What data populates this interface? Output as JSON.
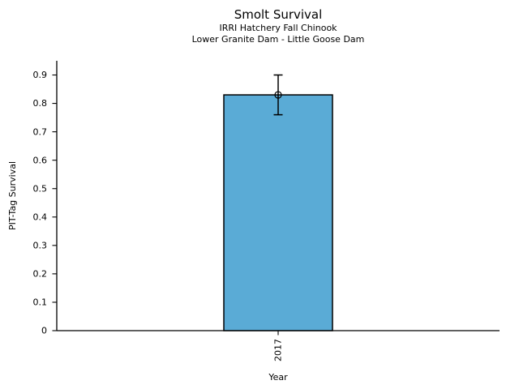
{
  "chart_data": {
    "type": "bar",
    "title": "Smolt Survival",
    "subtitle_lines": [
      "IRRI Hatchery Fall Chinook",
      "Lower Granite Dam - Little Goose Dam"
    ],
    "xlabel": "Year",
    "ylabel": "PIT-Tag Survival",
    "categories": [
      "2017"
    ],
    "values": [
      0.83
    ],
    "error_low": [
      0.76
    ],
    "error_high": [
      0.9
    ],
    "marker": "open-circle",
    "ylim": [
      0,
      0.95
    ],
    "yticks": [
      0,
      0.1,
      0.2,
      0.3,
      0.4,
      0.5,
      0.6,
      0.7,
      0.8,
      0.9
    ],
    "ytick_labels": [
      "0",
      "0.1",
      "0.2",
      "0.3",
      "0.4",
      "0.5",
      "0.6",
      "0.7",
      "0.8",
      "0.9"
    ],
    "grid": false,
    "legend": false,
    "colors": {
      "bar_fill": "#5AABD6",
      "bar_edge": "#000000",
      "error_bar": "#000000",
      "axis": "#000000",
      "text": "#000000",
      "background": "#FFFFFF"
    }
  }
}
